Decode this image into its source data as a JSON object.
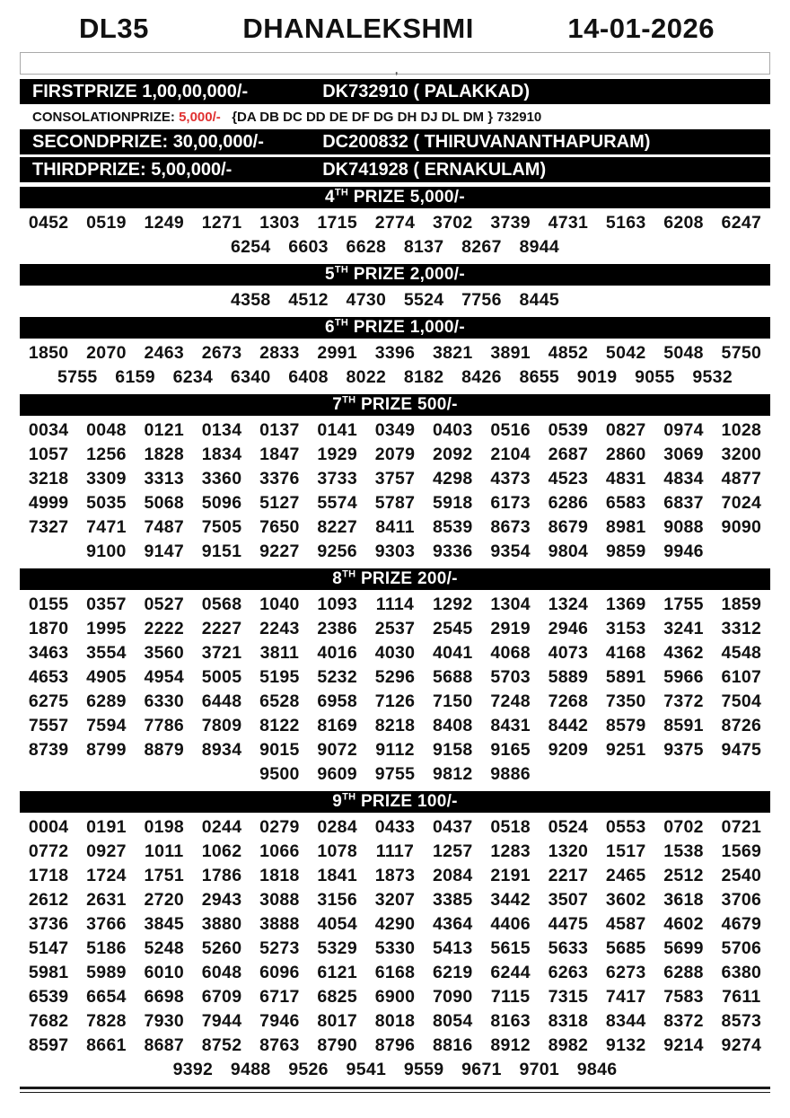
{
  "header": {
    "code": "DL35",
    "title": "DHANALEKSHMI",
    "date": "14-01-2026"
  },
  "blank_box": {
    "stray_mark": ","
  },
  "colors": {
    "bar_bg": "#000000",
    "bar_text": "#ffffff",
    "consolation_amount": "#e03131"
  },
  "top_prizes": [
    {
      "name": "first-prize-row",
      "style": "bar",
      "label": "FIRSTPRIZE",
      "amount": "1,00,00,000/-",
      "winner": "DK732910 ( PALAKKAD)"
    },
    {
      "name": "consolation-prize-row",
      "style": "plain",
      "label": "CONSOLATIONPRIZE:",
      "amount": "5,000/-",
      "amount_red": true,
      "winner": "{DA DB DC DD DE DF DG DH DJ DL DM } 732910"
    },
    {
      "name": "second-prize-row",
      "style": "bar",
      "label": "SECONDPRIZE:",
      "amount": "30,00,000/-",
      "winner": "DC200832 ( THIRUVANANTHAPURAM)"
    },
    {
      "name": "third-prize-row",
      "style": "bar",
      "label": "THIRDPRIZE:",
      "amount": "5,00,000/-",
      "winner": "DK741928 ( ERNAKULAM)"
    }
  ],
  "sections": [
    {
      "rank": "4",
      "ord": "TH",
      "label": "PRIZE 5,000/-",
      "numbers": [
        "0452",
        "0519",
        "1249",
        "1271",
        "1303",
        "1715",
        "2774",
        "3702",
        "3739",
        "4731",
        "5163",
        "6208",
        "6247",
        "6254",
        "6603",
        "6628",
        "8137",
        "8267",
        "8944"
      ]
    },
    {
      "rank": "5",
      "ord": "TH",
      "label": "PRIZE 2,000/-",
      "numbers": [
        "4358",
        "4512",
        "4730",
        "5524",
        "7756",
        "8445"
      ]
    },
    {
      "rank": "6",
      "ord": "TH",
      "label": "PRIZE 1,000/-",
      "numbers": [
        "1850",
        "2070",
        "2463",
        "2673",
        "2833",
        "2991",
        "3396",
        "3821",
        "3891",
        "4852",
        "5042",
        "5048",
        "5750",
        "5755",
        "6159",
        "6234",
        "6340",
        "6408",
        "8022",
        "8182",
        "8426",
        "8655",
        "9019",
        "9055",
        "9532"
      ]
    },
    {
      "rank": "7",
      "ord": "TH",
      "label": "PRIZE 500/-",
      "numbers": [
        "0034",
        "0048",
        "0121",
        "0134",
        "0137",
        "0141",
        "0349",
        "0403",
        "0516",
        "0539",
        "0827",
        "0974",
        "1028",
        "1057",
        "1256",
        "1828",
        "1834",
        "1847",
        "1929",
        "2079",
        "2092",
        "2104",
        "2687",
        "2860",
        "3069",
        "3200",
        "3218",
        "3309",
        "3313",
        "3360",
        "3376",
        "3733",
        "3757",
        "4298",
        "4373",
        "4523",
        "4831",
        "4834",
        "4877",
        "4999",
        "5035",
        "5068",
        "5096",
        "5127",
        "5574",
        "5787",
        "5918",
        "6173",
        "6286",
        "6583",
        "6837",
        "7024",
        "7327",
        "7471",
        "7487",
        "7505",
        "7650",
        "8227",
        "8411",
        "8539",
        "8673",
        "8679",
        "8981",
        "9088",
        "9090",
        "9100",
        "9147",
        "9151",
        "9227",
        "9256",
        "9303",
        "9336",
        "9354",
        "9804",
        "9859",
        "9946"
      ]
    },
    {
      "rank": "8",
      "ord": "TH",
      "label": "PRIZE 200/-",
      "numbers": [
        "0155",
        "0357",
        "0527",
        "0568",
        "1040",
        "1093",
        "1114",
        "1292",
        "1304",
        "1324",
        "1369",
        "1755",
        "1859",
        "1870",
        "1995",
        "2222",
        "2227",
        "2243",
        "2386",
        "2537",
        "2545",
        "2919",
        "2946",
        "3153",
        "3241",
        "3312",
        "3463",
        "3554",
        "3560",
        "3721",
        "3811",
        "4016",
        "4030",
        "4041",
        "4068",
        "4073",
        "4168",
        "4362",
        "4548",
        "4653",
        "4905",
        "4954",
        "5005",
        "5195",
        "5232",
        "5296",
        "5688",
        "5703",
        "5889",
        "5891",
        "5966",
        "6107",
        "6275",
        "6289",
        "6330",
        "6448",
        "6528",
        "6958",
        "7126",
        "7150",
        "7248",
        "7268",
        "7350",
        "7372",
        "7504",
        "7557",
        "7594",
        "7786",
        "7809",
        "8122",
        "8169",
        "8218",
        "8408",
        "8431",
        "8442",
        "8579",
        "8591",
        "8726",
        "8739",
        "8799",
        "8879",
        "8934",
        "9015",
        "9072",
        "9112",
        "9158",
        "9165",
        "9209",
        "9251",
        "9375",
        "9475",
        "9500",
        "9609",
        "9755",
        "9812",
        "9886"
      ]
    },
    {
      "rank": "9",
      "ord": "TH",
      "label": "PRIZE 100/-",
      "numbers": [
        "0004",
        "0191",
        "0198",
        "0244",
        "0279",
        "0284",
        "0433",
        "0437",
        "0518",
        "0524",
        "0553",
        "0702",
        "0721",
        "0772",
        "0927",
        "1011",
        "1062",
        "1066",
        "1078",
        "1117",
        "1257",
        "1283",
        "1320",
        "1517",
        "1538",
        "1569",
        "1718",
        "1724",
        "1751",
        "1786",
        "1818",
        "1841",
        "1873",
        "2084",
        "2191",
        "2217",
        "2465",
        "2512",
        "2540",
        "2612",
        "2631",
        "2720",
        "2943",
        "3088",
        "3156",
        "3207",
        "3385",
        "3442",
        "3507",
        "3602",
        "3618",
        "3706",
        "3736",
        "3766",
        "3845",
        "3880",
        "3888",
        "4054",
        "4290",
        "4364",
        "4406",
        "4475",
        "4587",
        "4602",
        "4679",
        "5147",
        "5186",
        "5248",
        "5260",
        "5273",
        "5329",
        "5330",
        "5413",
        "5615",
        "5633",
        "5685",
        "5699",
        "5706",
        "5981",
        "5989",
        "6010",
        "6048",
        "6096",
        "6121",
        "6168",
        "6219",
        "6244",
        "6263",
        "6273",
        "6288",
        "6380",
        "6539",
        "6654",
        "6698",
        "6709",
        "6717",
        "6825",
        "6900",
        "7090",
        "7115",
        "7315",
        "7417",
        "7583",
        "7611",
        "7682",
        "7828",
        "7930",
        "7944",
        "7946",
        "8017",
        "8018",
        "8054",
        "8163",
        "8318",
        "8344",
        "8372",
        "8573",
        "8597",
        "8661",
        "8687",
        "8752",
        "8763",
        "8790",
        "8796",
        "8816",
        "8912",
        "8982",
        "9132",
        "9214",
        "9274",
        "9392",
        "9488",
        "9526",
        "9541",
        "9559",
        "9671",
        "9701",
        "9846"
      ]
    }
  ]
}
